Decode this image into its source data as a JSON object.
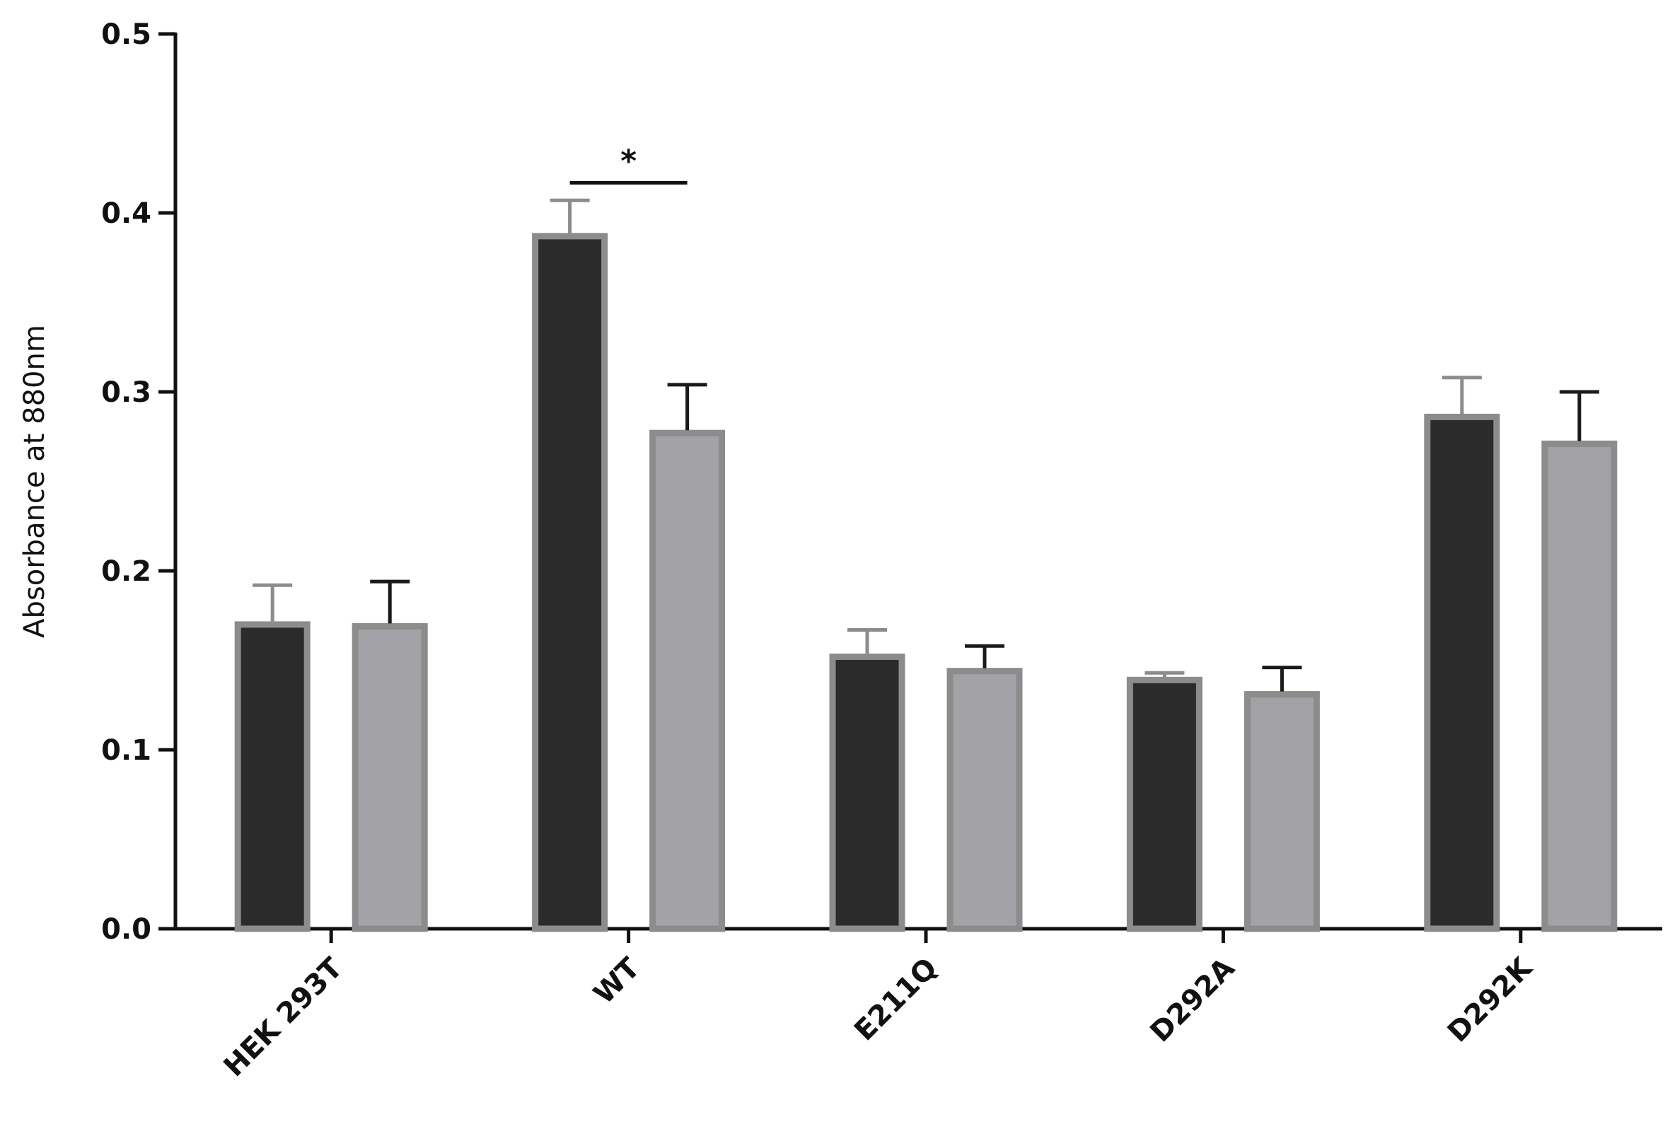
{
  "chart_data": {
    "type": "bar",
    "title": "",
    "xlabel": "",
    "ylabel": "Absorbance at 880nm",
    "ylim": [
      0,
      0.5
    ],
    "yticks": [
      "0.0",
      "0.1",
      "0.2",
      "0.3",
      "0.4",
      "0.5"
    ],
    "categories": [
      "HEK 293T",
      "WT",
      "E211Q",
      "D292A",
      "D292K"
    ],
    "series": [
      {
        "values": [
          0.17,
          0.387,
          0.152,
          0.139,
          0.286
        ],
        "errors": [
          0.022,
          0.02,
          0.015,
          0.004,
          0.022
        ],
        "fill": "#2b2b2b",
        "edge": "#8c8c8c",
        "errcolor": "#8c8c8c"
      },
      {
        "values": [
          0.169,
          0.277,
          0.144,
          0.131,
          0.271
        ],
        "errors": [
          0.025,
          0.027,
          0.014,
          0.015,
          0.029
        ],
        "fill": "#a3a2a7",
        "edge": "#8c8c8c",
        "errcolor": "#1a1a1a"
      }
    ],
    "annotations": [
      {
        "text": "*",
        "category": "WT",
        "y": 0.42
      }
    ],
    "grid": false,
    "legend": "none"
  }
}
